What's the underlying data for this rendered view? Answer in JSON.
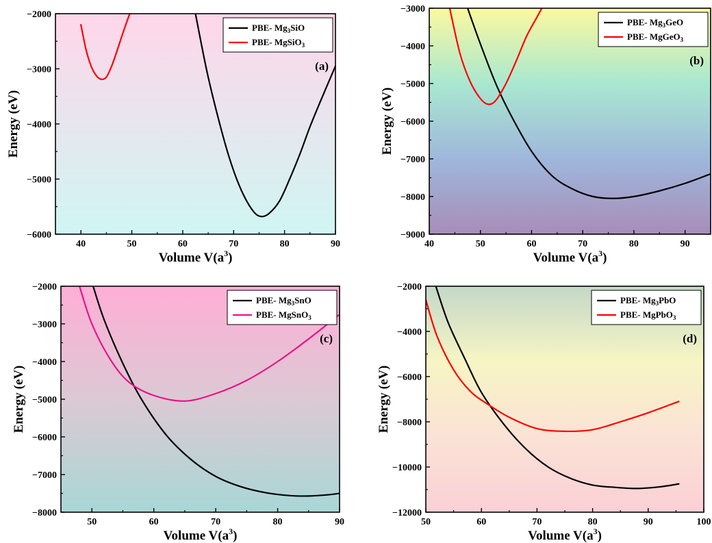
{
  "chart_data": [
    {
      "type": "line",
      "panel_label": "(a)",
      "xlabel": "Volume V(a3)",
      "ylabel": "Energy (eV)",
      "xlim": [
        35,
        90
      ],
      "ylim": [
        -6000,
        -2000
      ],
      "xticks": [
        40,
        50,
        60,
        70,
        80,
        90
      ],
      "yticks": [
        -6000,
        -5000,
        -4000,
        -3000,
        -2000
      ],
      "background": [
        "#ffd6ea",
        "#cff6f3"
      ],
      "legend_position": "top-right",
      "series": [
        {
          "name": "PBE- Mg3SiO",
          "color": "#000000",
          "x": [
            62.5,
            65,
            68,
            70,
            72,
            74,
            75.5,
            77,
            79,
            81,
            83,
            85,
            87,
            90
          ],
          "y": [
            -2000,
            -3150,
            -4250,
            -4850,
            -5300,
            -5600,
            -5680,
            -5620,
            -5400,
            -5000,
            -4550,
            -4050,
            -3600,
            -2950
          ]
        },
        {
          "name": "PBE- MgSiO3",
          "color": "#ff0000",
          "x": [
            40,
            41,
            42,
            43,
            44,
            45,
            46,
            47,
            48,
            49,
            49.6
          ],
          "y": [
            -2200,
            -2650,
            -2950,
            -3120,
            -3190,
            -3150,
            -2960,
            -2700,
            -2420,
            -2150,
            -2000
          ]
        }
      ]
    },
    {
      "type": "line",
      "panel_label": "(b)",
      "xlabel": "Volume V(a3)",
      "ylabel": "Energy (eV)",
      "xlim": [
        40,
        95
      ],
      "ylim": [
        -9000,
        -3000
      ],
      "xticks": [
        40,
        50,
        60,
        70,
        80,
        90
      ],
      "yticks": [
        -9000,
        -8000,
        -7000,
        -6000,
        -5000,
        -4000,
        -3000
      ],
      "background": [
        "#fbf8a0",
        "#a9e8d0",
        "#9fb7dc",
        "#a78db8"
      ],
      "legend_position": "top-right",
      "series": [
        {
          "name": "PBE- Mg3GeO",
          "color": "#000000",
          "x": [
            47.5,
            50,
            53,
            56,
            60,
            64,
            68,
            72,
            76,
            80,
            85,
            90,
            95
          ],
          "y": [
            -3000,
            -3950,
            -5000,
            -5850,
            -6800,
            -7450,
            -7800,
            -8000,
            -8050,
            -8000,
            -7850,
            -7650,
            -7400
          ]
        },
        {
          "name": "PBE- MgGeO3",
          "color": "#ff0000",
          "x": [
            44,
            46,
            48,
            50,
            51.5,
            53,
            55,
            57,
            59,
            61,
            62
          ],
          "y": [
            -3000,
            -4200,
            -4950,
            -5400,
            -5550,
            -5450,
            -5000,
            -4400,
            -3750,
            -3250,
            -3000
          ]
        }
      ]
    },
    {
      "type": "line",
      "panel_label": "(c)",
      "xlabel": "Volume V(a3)",
      "ylabel": "Energy (eV)",
      "xlim": [
        45,
        90
      ],
      "ylim": [
        -8000,
        -2000
      ],
      "xticks": [
        50,
        60,
        70,
        80,
        90
      ],
      "yticks": [
        -8000,
        -7000,
        -6000,
        -5000,
        -4000,
        -3000,
        -2000
      ],
      "background": [
        "#ffaed6",
        "#dcc9d3",
        "#a8d7d6"
      ],
      "legend_position": "top-right",
      "series": [
        {
          "name": "PBE- Mg3SnO",
          "color": "#000000",
          "x": [
            50.2,
            52,
            55,
            58,
            62,
            66,
            70,
            74,
            78,
            82,
            85,
            88,
            90
          ],
          "y": [
            -2000,
            -2900,
            -4050,
            -5000,
            -5950,
            -6600,
            -7050,
            -7320,
            -7480,
            -7560,
            -7570,
            -7540,
            -7500
          ]
        },
        {
          "name": "PBE- MgSnO3",
          "color": "#e6148c",
          "x": [
            48,
            50,
            53,
            56,
            60,
            65,
            70,
            75,
            80,
            85,
            90
          ],
          "y": [
            -2000,
            -3000,
            -3950,
            -4550,
            -4900,
            -5050,
            -4850,
            -4500,
            -4000,
            -3400,
            -2750
          ]
        }
      ]
    },
    {
      "type": "line",
      "panel_label": "(d)",
      "xlabel": "Volume V(a3)",
      "ylabel": "Energy (eV)",
      "xlim": [
        50,
        100
      ],
      "ylim": [
        -12000,
        -2000
      ],
      "xticks": [
        50,
        60,
        70,
        80,
        90,
        100
      ],
      "yticks": [
        -12000,
        -10000,
        -8000,
        -6000,
        -4000,
        -2000
      ],
      "background": [
        "#c4d8c8",
        "#f7f5c4",
        "#fbe2d6",
        "#fbd0d6"
      ],
      "legend_position": "top-right",
      "series": [
        {
          "name": "PBE- Mg3PbO",
          "color": "#000000",
          "x": [
            51.8,
            54,
            57,
            60,
            64,
            68,
            72,
            76,
            80,
            84,
            88,
            92,
            95.5
          ],
          "y": [
            -2000,
            -3600,
            -5200,
            -6700,
            -8100,
            -9200,
            -10000,
            -10500,
            -10800,
            -10900,
            -10950,
            -10880,
            -10750
          ]
        },
        {
          "name": "PBE- MgPbO3",
          "color": "#ff0000",
          "x": [
            50,
            52,
            55,
            58,
            61,
            65,
            70,
            75,
            80,
            85,
            90,
            95.5
          ],
          "y": [
            -2600,
            -4200,
            -5700,
            -6650,
            -7200,
            -7800,
            -8300,
            -8420,
            -8350,
            -8000,
            -7600,
            -7100
          ]
        }
      ]
    }
  ]
}
